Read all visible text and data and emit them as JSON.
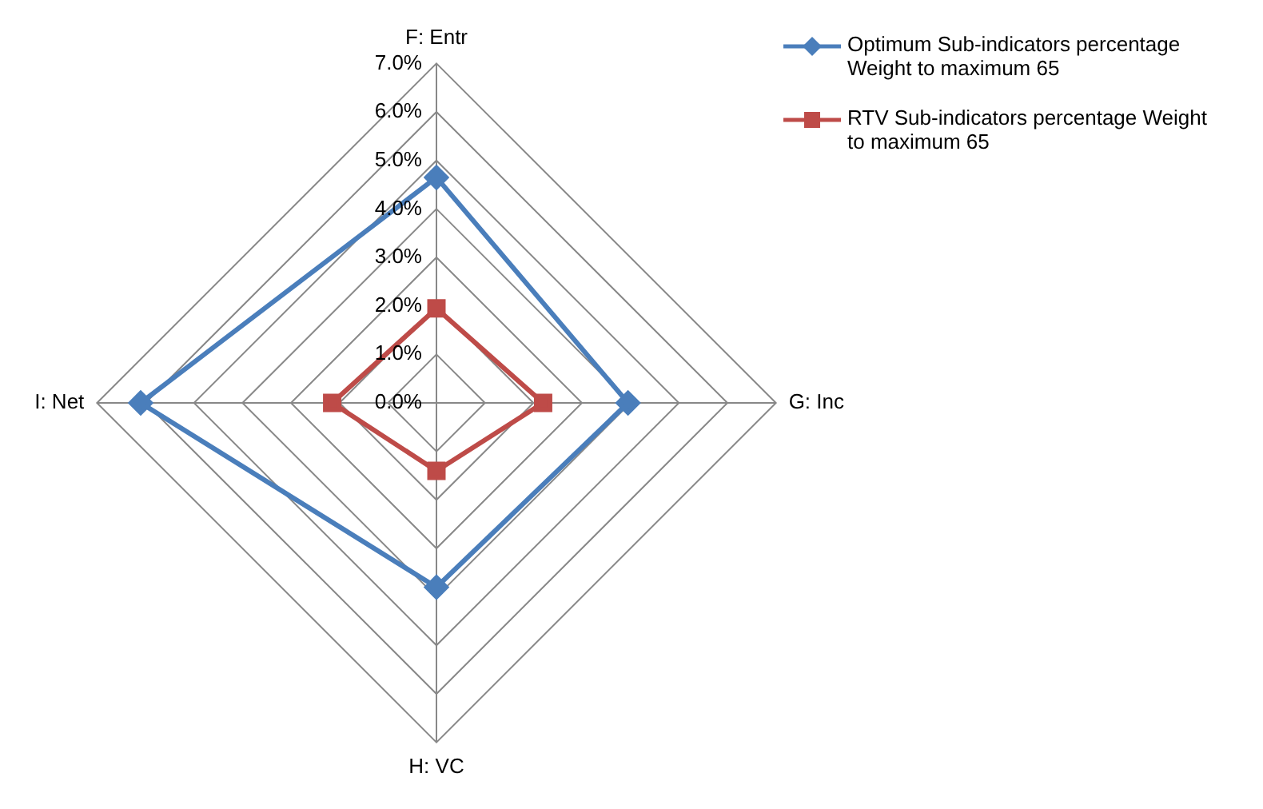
{
  "chart_data": {
    "type": "radar",
    "categories": [
      "F: Entr",
      "G: Inc",
      "H: VC",
      "I: Net"
    ],
    "series": [
      {
        "name": "Optimum Sub-indicators percentage Weight to maximum 65",
        "color": "#4a7ebb",
        "marker": "diamond",
        "values": [
          4.65,
          3.95,
          3.8,
          6.1
        ]
      },
      {
        "name": "RTV Sub-indicators percentage Weight to maximum 65",
        "color": "#be4b48",
        "marker": "square",
        "values": [
          1.95,
          2.2,
          1.4,
          2.15
        ]
      }
    ],
    "ylim": [
      0,
      7
    ],
    "yticks": [
      {
        "value": 0,
        "label": "0.0%"
      },
      {
        "value": 1,
        "label": "1.0%"
      },
      {
        "value": 2,
        "label": "2.0%"
      },
      {
        "value": 3,
        "label": "3.0%"
      },
      {
        "value": 4,
        "label": "4.0%"
      },
      {
        "value": 5,
        "label": "5.0%"
      },
      {
        "value": 6,
        "label": "6.0%"
      },
      {
        "value": 7,
        "label": "7.0%"
      }
    ],
    "grid": true,
    "legend": "top right"
  }
}
